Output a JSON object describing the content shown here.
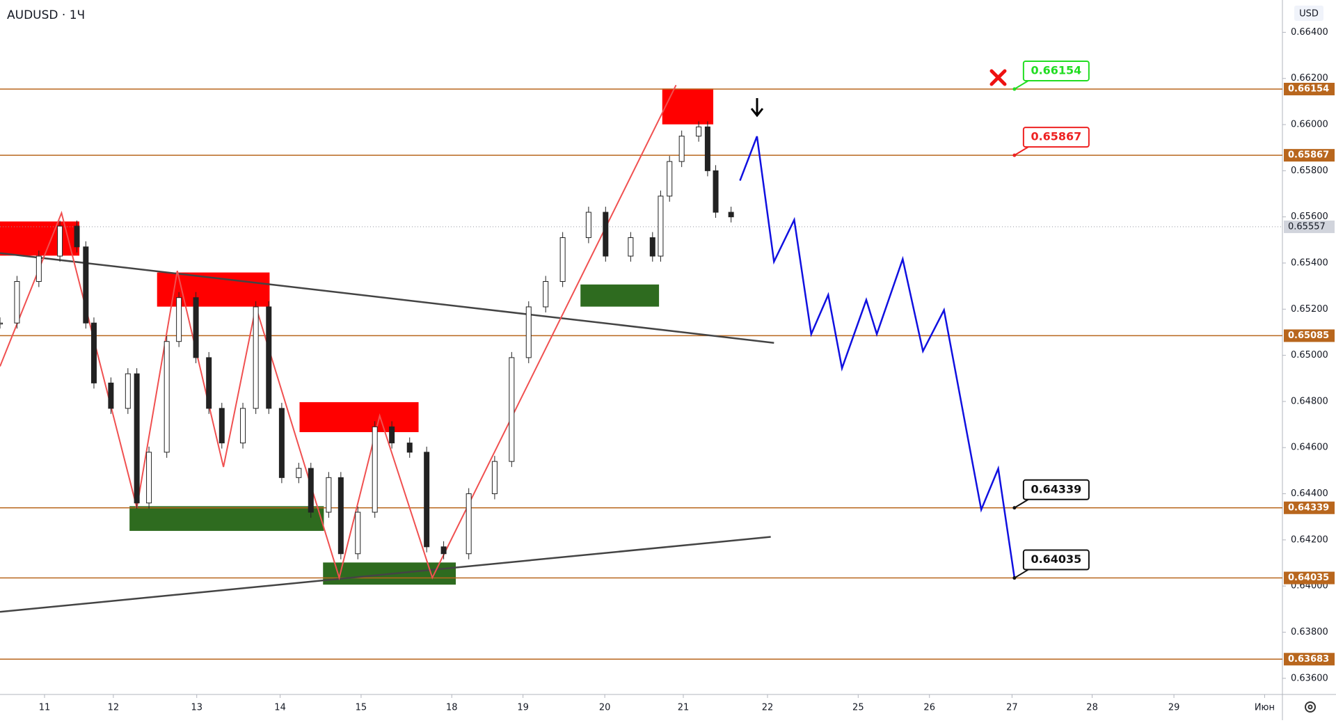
{
  "chart_data": {
    "type": "candlestick",
    "title": "AUDUSD · 1Ч",
    "currency": "USD",
    "xlim": [
      -0.55,
      15.29
    ],
    "ylim": [
      0.6353,
      0.6654
    ],
    "xticks": [
      {
        "value": 0,
        "label": "11"
      },
      {
        "value": 0.85,
        "label": "12"
      },
      {
        "value": 1.88,
        "label": "13"
      },
      {
        "value": 2.91,
        "label": "14"
      },
      {
        "value": 3.91,
        "label": "15"
      },
      {
        "value": 5.03,
        "label": "18"
      },
      {
        "value": 5.91,
        "label": "19"
      },
      {
        "value": 6.92,
        "label": "20"
      },
      {
        "value": 7.89,
        "label": "21"
      },
      {
        "value": 8.93,
        "label": "22"
      },
      {
        "value": 10.05,
        "label": "25"
      },
      {
        "value": 10.93,
        "label": "26"
      },
      {
        "value": 11.95,
        "label": "27"
      },
      {
        "value": 12.94,
        "label": "28"
      },
      {
        "value": 13.95,
        "label": "29"
      },
      {
        "value": 15.07,
        "label": "Июн"
      }
    ],
    "yticks": [
      {
        "value": 0.664,
        "label": "0.66400"
      },
      {
        "value": 0.662,
        "label": "0.66200"
      },
      {
        "value": 0.66,
        "label": "0.66000"
      },
      {
        "value": 0.658,
        "label": "0.65800"
      },
      {
        "value": 0.656,
        "label": "0.65600"
      },
      {
        "value": 0.654,
        "label": "0.65400"
      },
      {
        "value": 0.652,
        "label": "0.65200"
      },
      {
        "value": 0.65,
        "label": "0.65000"
      },
      {
        "value": 0.648,
        "label": "0.64800"
      },
      {
        "value": 0.646,
        "label": "0.64600"
      },
      {
        "value": 0.644,
        "label": "0.64400"
      },
      {
        "value": 0.642,
        "label": "0.64200"
      },
      {
        "value": 0.64,
        "label": "0.64000"
      },
      {
        "value": 0.638,
        "label": "0.63800"
      },
      {
        "value": 0.636,
        "label": "0.63600"
      }
    ],
    "price": {
      "up_color": "#26a69a",
      "down_color": "#222222",
      "x": [
        -0.55,
        -0.34,
        -0.07,
        0.19,
        0.4,
        0.51,
        0.61,
        0.82,
        1.03,
        1.14,
        1.29,
        1.51,
        1.66,
        1.87,
        2.03,
        2.19,
        2.45,
        2.61,
        2.77,
        2.93,
        3.14,
        3.29,
        3.51,
        3.66,
        3.87,
        4.08,
        4.29,
        4.51,
        4.72,
        4.93,
        5.24,
        5.56,
        5.77,
        5.98,
        6.19,
        6.4,
        6.72,
        6.93,
        7.24,
        7.51,
        7.61,
        7.72,
        7.87,
        8.08,
        8.19,
        8.29,
        8.48
      ],
      "close": [
        0.6514,
        0.6532,
        0.6543,
        0.6556,
        0.6547,
        0.6514,
        0.6488,
        0.6477,
        0.6492,
        0.6436,
        0.6458,
        0.6506,
        0.6525,
        0.6499,
        0.6477,
        0.6462,
        0.6477,
        0.6521,
        0.6477,
        0.6447,
        0.6451,
        0.6432,
        0.6447,
        0.6414,
        0.6432,
        0.6469,
        0.6462,
        0.6458,
        0.6417,
        0.6414,
        0.644,
        0.6454,
        0.6499,
        0.6521,
        0.6532,
        0.6551,
        0.6562,
        0.6543,
        0.6551,
        0.6543,
        0.6569,
        0.6584,
        0.6595,
        0.6599,
        0.658,
        0.6562,
        0.656
      ]
    },
    "last_price": {
      "value": 0.65557,
      "color": "#9598a1"
    },
    "levels": {
      "color": "#b8661d",
      "values": [
        0.66154,
        0.65867,
        0.65085,
        0.64339,
        0.64035,
        0.63683
      ]
    },
    "zones": [
      {
        "x": [
          -0.55,
          0.43
        ],
        "y": [
          0.65432,
          0.6558
        ],
        "color": "#ff0000"
      },
      {
        "x": [
          1.39,
          2.78
        ],
        "y": [
          0.65211,
          0.65359
        ],
        "color": "#ff0000"
      },
      {
        "x": [
          3.15,
          4.62
        ],
        "y": [
          0.64667,
          0.64797
        ],
        "color": "#ff0000"
      },
      {
        "x": [
          7.63,
          8.26
        ],
        "y": [
          0.66001,
          0.66156
        ],
        "color": "#ff0000"
      },
      {
        "x": [
          1.05,
          3.45
        ],
        "y": [
          0.64239,
          0.64346
        ],
        "color": "#2e6b1f"
      },
      {
        "x": [
          3.44,
          5.08
        ],
        "y": [
          0.64006,
          0.64102
        ],
        "color": "#2e6b1f"
      },
      {
        "x": [
          6.62,
          7.59
        ],
        "y": [
          0.65211,
          0.65307
        ],
        "color": "#2e6b1f"
      }
    ],
    "trendlines": [
      {
        "x": [
          -0.55,
          9.01
        ],
        "y": [
          0.65443,
          0.65054
        ],
        "color": "#444444"
      },
      {
        "x": [
          -0.55,
          8.97
        ],
        "y": [
          0.63888,
          0.64213
        ],
        "color": "#444444"
      }
    ],
    "pattern": {
      "color": "#f05050",
      "x": [
        -0.55,
        0.21,
        1.14,
        1.64,
        2.21,
        2.61,
        3.64,
        4.14,
        4.79,
        7.8
      ],
      "y": [
        0.64952,
        0.65617,
        0.64339,
        0.65366,
        0.64516,
        0.65211,
        0.64036,
        0.64738,
        0.64036,
        0.66171
      ]
    },
    "projection": {
      "color": "#1010e0",
      "x": [
        8.59,
        8.8,
        9.01,
        9.26,
        9.47,
        9.68,
        9.85,
        10.15,
        10.28,
        10.6,
        10.85,
        11.11,
        11.57,
        11.78,
        11.98
      ],
      "y": [
        0.65757,
        0.65949,
        0.65406,
        0.65587,
        0.65092,
        0.65262,
        0.64944,
        0.6524,
        0.65092,
        0.65417,
        0.65018,
        0.65196,
        0.64331,
        0.64509,
        0.64036
      ]
    },
    "callouts": {
      "x": 11.98,
      "items": [
        {
          "value": 0.66154,
          "color": "#22dd22"
        },
        {
          "value": 0.65867,
          "color": "#ee2222"
        },
        {
          "value": 0.64339,
          "color": "#111111"
        },
        {
          "value": 0.64035,
          "color": "#111111"
        }
      ]
    }
  }
}
